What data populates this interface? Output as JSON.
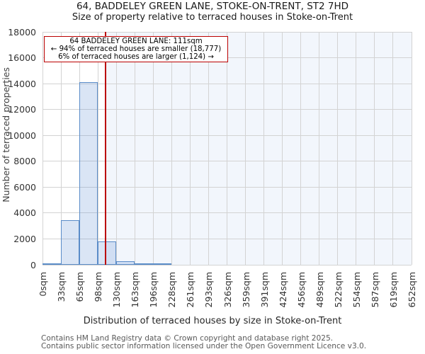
{
  "page": {
    "title": "64, BADDELEY GREEN LANE, STOKE-ON-TRENT, ST2 7HD",
    "subtitle": "Size of property relative to terraced houses in Stoke-on-Trent",
    "footer_line1": "Contains HM Land Registry data © Crown copyright and database right 2025.",
    "footer_line2": "Contains public sector information licensed under the Open Government Licence v3.0."
  },
  "annotation": {
    "line1": "64 BADDELEY GREEN LANE: 111sqm",
    "line2": "← 94% of terraced houses are smaller (18,777)",
    "line3": "6% of terraced houses are larger (1,124) →"
  },
  "chart_data": {
    "type": "bar",
    "title": "64, BADDELEY GREEN LANE, STOKE-ON-TRENT, ST2 7HD",
    "subtitle": "Size of property relative to terraced houses in Stoke-on-Trent",
    "xlabel": "Distribution of terraced houses by size in Stoke-on-Trent",
    "ylabel": "Number of terraced properties",
    "x_tick_labels": [
      "0sqm",
      "33sqm",
      "65sqm",
      "98sqm",
      "130sqm",
      "163sqm",
      "196sqm",
      "228sqm",
      "261sqm",
      "293sqm",
      "326sqm",
      "359sqm",
      "391sqm",
      "424sqm",
      "456sqm",
      "489sqm",
      "522sqm",
      "554sqm",
      "587sqm",
      "619sqm",
      "652sqm"
    ],
    "x_range_sqm": [
      0,
      652
    ],
    "bin_width_sqm": 32.6,
    "values": [
      50,
      3450,
      14100,
      1800,
      250,
      60,
      30,
      0,
      0,
      0,
      0,
      0,
      0,
      0,
      0,
      0,
      0,
      0,
      0,
      0
    ],
    "y_ticks": [
      0,
      2000,
      4000,
      6000,
      8000,
      10000,
      12000,
      14000,
      16000,
      18000
    ],
    "ylim": [
      0,
      18000
    ],
    "grid": true,
    "legend": null,
    "marker": {
      "label": "64 BADDELEY GREEN LANE",
      "value_sqm": 111,
      "smaller_pct": 94,
      "smaller_count": "18,777",
      "larger_pct": 6,
      "larger_count": "1,124",
      "color": "#bb0000"
    },
    "colors": {
      "bar_fill": "rgba(107,150,214,0.25)",
      "bar_edge": "#5a8cc8",
      "span_fill": "#f2f6fc",
      "gridline": "#d3d3d3"
    }
  }
}
